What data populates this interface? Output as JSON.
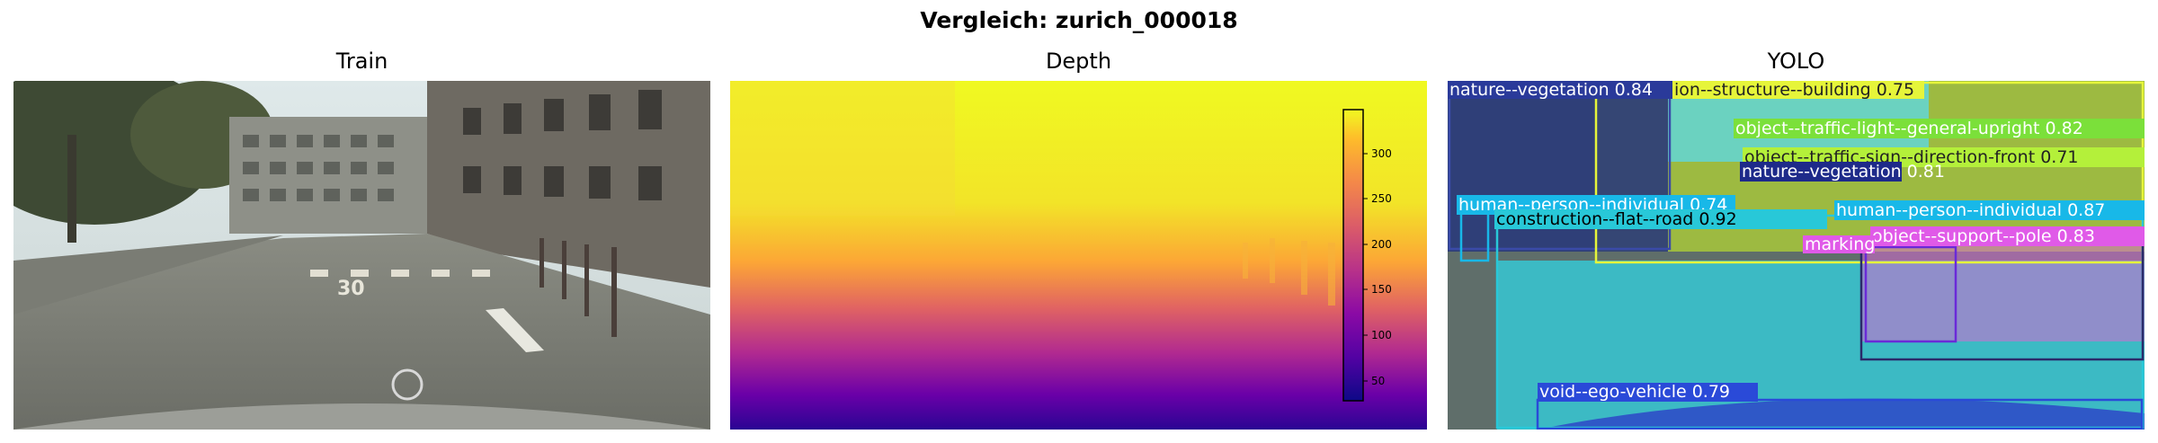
{
  "figure": {
    "title": "Vergleich: zurich_000018"
  },
  "panels": [
    {
      "title": "Train"
    },
    {
      "title": "Depth"
    },
    {
      "title": "YOLO"
    }
  ],
  "colorbar": {
    "ticks": [
      "300",
      "250",
      "200",
      "150",
      "100",
      "50"
    ],
    "colormap": "plasma",
    "range": [
      25,
      345
    ]
  },
  "street_markings": {
    "road_number": "30"
  },
  "detections": [
    {
      "label": "nature--vegetation 0.84",
      "color": "#2a3a9a"
    },
    {
      "label": "ion--structure--building 0.75",
      "color": "#e6f53a"
    },
    {
      "label": "object--traffic-light--general-upright 0.82",
      "color": "#7be03a"
    },
    {
      "label": "object--traffic-sign--direction-front 0.71",
      "color": "#b4f03a"
    },
    {
      "label": "nature--vegetation 0.81",
      "color": "#1e2a8a"
    },
    {
      "label": "human--person--individual 0.74",
      "color": "#18b8e8"
    },
    {
      "label": "construction--flat--road 0.92",
      "color": "#28c8d8"
    },
    {
      "label": "human--person--individual 0.87",
      "color": "#18b8e8"
    },
    {
      "label": "object--support--pole 0.83",
      "color": "#e05ae8"
    },
    {
      "label": "marking",
      "color": "#e05ae8"
    },
    {
      "label": "void--ego-vehicle 0.79",
      "color": "#2a4ad8"
    }
  ]
}
